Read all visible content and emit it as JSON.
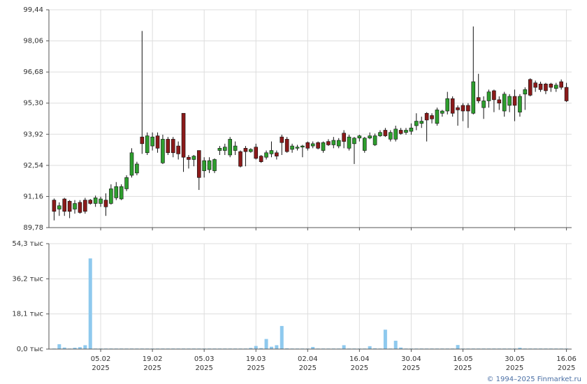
{
  "chart_data": [
    {
      "type": "candlestick",
      "xlim": [
        -1,
        100
      ],
      "ylim": [
        89.78,
        99.44
      ],
      "grid": true,
      "up_color": "#2e9e2e",
      "down_color": "#8b1a1a",
      "yticks": [
        {
          "value": 89.78,
          "label": "89,78"
        },
        {
          "value": 91.16,
          "label": "91,16"
        },
        {
          "value": 92.54,
          "label": "92,54"
        },
        {
          "value": 93.92,
          "label": "93,92"
        },
        {
          "value": 95.3,
          "label": "95,30"
        },
        {
          "value": 96.68,
          "label": "96,68"
        },
        {
          "value": 98.06,
          "label": "98,06"
        },
        {
          "value": 99.44,
          "label": "99,44"
        }
      ],
      "open": [
        91.0,
        90.6,
        91.05,
        90.95,
        90.6,
        90.9,
        91.0,
        91.0,
        90.85,
        90.85,
        91.0,
        90.85,
        91.1,
        91.05,
        91.5,
        92.1,
        92.2,
        93.8,
        93.1,
        93.4,
        93.85,
        92.65,
        93.7,
        93.7,
        93.4,
        94.85,
        92.9,
        92.8,
        93.2,
        92.3,
        92.35,
        92.3,
        93.2,
        93.2,
        93.0,
        93.2,
        93.15,
        93.3,
        93.15,
        93.35,
        92.95,
        92.9,
        93.05,
        93.1,
        93.8,
        93.7,
        93.25,
        93.3,
        93.35,
        93.55,
        93.4,
        93.55,
        93.2,
        93.6,
        93.45,
        93.4,
        93.97,
        93.3,
        93.5,
        93.75,
        93.2,
        93.75,
        93.45,
        93.85,
        94.1,
        93.7,
        93.7,
        94.1,
        94.0,
        94.05,
        94.3,
        94.4,
        94.85,
        94.75,
        94.4,
        94.85,
        94.95,
        95.5,
        95.1,
        95.2,
        95.2,
        94.85,
        95.55,
        95.1,
        95.4,
        95.85,
        95.45,
        94.95,
        95.2,
        95.6,
        94.9,
        95.7,
        96.35,
        96.2,
        96.15,
        96.15,
        96.15,
        95.95,
        96.25,
        96.0
      ],
      "high": [
        91.07,
        90.9,
        91.1,
        91.0,
        91.0,
        91.0,
        91.1,
        91.05,
        91.2,
        91.15,
        91.3,
        91.7,
        91.8,
        91.7,
        92.1,
        93.3,
        92.7,
        98.5,
        94.0,
        94.0,
        94.0,
        93.9,
        93.8,
        93.8,
        93.6,
        94.85,
        93.0,
        93.0,
        93.2,
        92.9,
        92.9,
        92.85,
        93.4,
        93.5,
        93.8,
        93.6,
        93.2,
        93.4,
        93.3,
        93.5,
        93.0,
        93.2,
        93.6,
        93.2,
        93.9,
        93.8,
        93.5,
        93.45,
        93.45,
        93.6,
        93.6,
        93.6,
        93.6,
        93.7,
        93.8,
        93.75,
        94.1,
        93.9,
        93.8,
        93.9,
        93.8,
        94.0,
        93.95,
        94.1,
        94.2,
        94.1,
        94.3,
        94.2,
        94.2,
        94.4,
        94.85,
        94.7,
        94.9,
        94.85,
        95.1,
        95.0,
        95.8,
        95.6,
        95.2,
        95.3,
        95.3,
        98.7,
        96.6,
        95.6,
        95.9,
        95.9,
        95.6,
        95.8,
        95.7,
        95.9,
        95.7,
        96.0,
        96.4,
        96.3,
        96.25,
        96.2,
        96.2,
        96.2,
        96.35,
        96.2
      ],
      "low": [
        90.1,
        90.3,
        90.3,
        90.2,
        90.4,
        90.4,
        90.4,
        90.8,
        90.7,
        90.7,
        90.3,
        90.8,
        91.0,
        91.0,
        91.4,
        92.0,
        92.1,
        93.05,
        93.0,
        93.2,
        93.1,
        92.6,
        93.0,
        92.9,
        92.8,
        92.25,
        92.4,
        92.5,
        91.45,
        92.0,
        92.2,
        92.2,
        93.0,
        93.0,
        92.9,
        93.0,
        92.45,
        92.5,
        93.1,
        92.8,
        92.65,
        92.8,
        92.9,
        92.8,
        93.0,
        93.1,
        93.1,
        93.2,
        92.9,
        93.2,
        93.3,
        93.25,
        93.1,
        93.4,
        93.3,
        93.3,
        93.3,
        93.2,
        92.6,
        93.6,
        93.1,
        93.7,
        93.4,
        93.8,
        93.8,
        93.6,
        93.6,
        93.9,
        93.9,
        93.9,
        94.1,
        94.2,
        93.6,
        94.4,
        94.3,
        94.7,
        94.8,
        94.7,
        94.3,
        94.5,
        94.2,
        94.8,
        95.3,
        94.6,
        95.1,
        94.9,
        95.0,
        94.7,
        94.9,
        94.5,
        94.7,
        95.0,
        95.6,
        95.8,
        95.8,
        95.7,
        95.8,
        95.8,
        95.9,
        95.35
      ],
      "close": [
        90.5,
        90.75,
        90.5,
        90.5,
        90.85,
        90.45,
        90.5,
        90.85,
        91.1,
        91.05,
        90.7,
        91.5,
        91.6,
        91.6,
        92.0,
        93.1,
        92.6,
        93.5,
        93.85,
        93.8,
        93.3,
        93.7,
        93.1,
        93.1,
        93.05,
        92.9,
        92.8,
        92.95,
        92.0,
        92.75,
        92.75,
        92.8,
        93.3,
        93.35,
        93.7,
        93.4,
        92.5,
        93.15,
        93.25,
        92.85,
        92.7,
        93.1,
        93.2,
        92.95,
        93.55,
        93.15,
        93.4,
        93.35,
        93.4,
        93.3,
        93.5,
        93.3,
        93.55,
        93.45,
        93.65,
        93.65,
        93.6,
        93.8,
        93.75,
        93.85,
        93.75,
        93.85,
        93.85,
        94.0,
        93.85,
        94.0,
        94.15,
        93.95,
        94.1,
        94.2,
        94.5,
        94.5,
        94.55,
        94.6,
        95.0,
        94.95,
        95.5,
        94.85,
        95.0,
        94.95,
        94.95,
        96.25,
        95.4,
        95.4,
        95.8,
        95.45,
        95.3,
        95.7,
        95.6,
        95.2,
        95.6,
        95.9,
        95.65,
        96.0,
        95.9,
        95.85,
        96.0,
        96.1,
        96.0,
        95.4
      ]
    },
    {
      "type": "bar",
      "xlim": [
        -1,
        100
      ],
      "ylim": [
        0,
        54300
      ],
      "grid": true,
      "color": "#8ec9ee",
      "yticks": [
        {
          "value": 0,
          "label": "0,0 тыс"
        },
        {
          "value": 18100,
          "label": "18,1 тыс"
        },
        {
          "value": 36200,
          "label": "36,2 тыс"
        },
        {
          "value": 54300,
          "label": "54,3 тыс"
        }
      ],
      "xticks": [
        {
          "value": 9,
          "label": "05.02",
          "sublabel": "2025"
        },
        {
          "value": 19,
          "label": "19.02",
          "sublabel": "2025"
        },
        {
          "value": 29,
          "label": "05.03",
          "sublabel": "2025"
        },
        {
          "value": 39,
          "label": "19.03",
          "sublabel": "2025"
        },
        {
          "value": 49,
          "label": "02.04",
          "sublabel": "2025"
        },
        {
          "value": 59,
          "label": "16.04",
          "sublabel": "2025"
        },
        {
          "value": 69,
          "label": "30.04",
          "sublabel": "2025"
        },
        {
          "value": 79,
          "label": "16.05",
          "sublabel": "2025"
        },
        {
          "value": 89,
          "label": "30.05",
          "sublabel": "2025"
        },
        {
          "value": 99,
          "label": "16.06",
          "sublabel": "2025"
        }
      ],
      "values": [
        300,
        2500,
        800,
        300,
        700,
        1000,
        2000,
        46700,
        300,
        300,
        300,
        300,
        300,
        300,
        300,
        300,
        300,
        300,
        300,
        300,
        300,
        300,
        300,
        300,
        300,
        300,
        300,
        300,
        300,
        300,
        300,
        300,
        300,
        300,
        300,
        300,
        300,
        300,
        600,
        1600,
        500,
        5200,
        1200,
        2000,
        11900,
        400,
        300,
        300,
        300,
        300,
        1100,
        300,
        300,
        300,
        300,
        300,
        2000,
        300,
        300,
        300,
        300,
        1500,
        400,
        300,
        10000,
        300,
        4300,
        800,
        300,
        300,
        300,
        300,
        300,
        300,
        300,
        300,
        300,
        300,
        2100,
        300,
        300,
        300,
        300,
        300,
        300,
        300,
        300,
        300,
        300,
        300,
        700,
        300,
        300,
        300,
        300,
        300,
        300,
        300,
        300,
        300
      ]
    }
  ],
  "footer": "© 1994–2025 Finmarket.ru"
}
